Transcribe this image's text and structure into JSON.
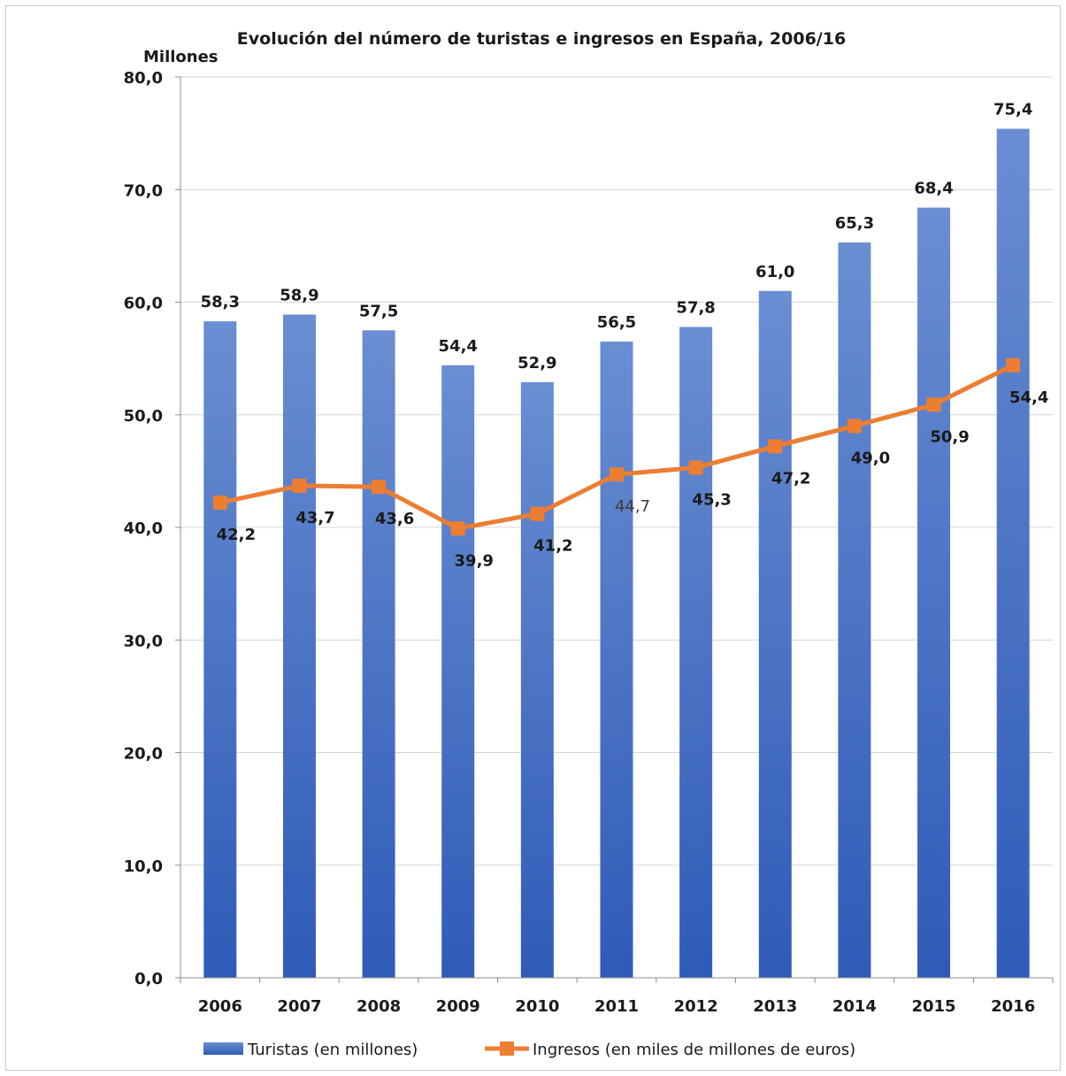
{
  "chart_data": {
    "type": "bar",
    "title": "Evolución del número de turistas e ingresos en España, 2006/16",
    "ylabel": "Millones",
    "xlabel": "",
    "ylim": [
      0,
      80
    ],
    "yticks": [
      "0,0",
      "10,0",
      "20,0",
      "30,0",
      "40,0",
      "50,0",
      "60,0",
      "70,0",
      "80,0"
    ],
    "grid": true,
    "legend": "bottom",
    "categories": [
      "2006",
      "2007",
      "2008",
      "2009",
      "2010",
      "2011",
      "2012",
      "2013",
      "2014",
      "2015",
      "2016"
    ],
    "series": [
      {
        "name": "Turistas (en millones)",
        "type": "bar",
        "color": "#4a72c4",
        "values": [
          58.3,
          58.9,
          57.5,
          54.4,
          52.9,
          56.5,
          57.8,
          61.0,
          65.3,
          68.4,
          75.4
        ],
        "labels": [
          "58,3",
          "58,9",
          "57,5",
          "54,4",
          "52,9",
          "56,5",
          "57,8",
          "61,0",
          "65,3",
          "68,4",
          "75,4"
        ]
      },
      {
        "name": "Ingresos (en miles de millones de euros)",
        "type": "line",
        "color": "#ed7d31",
        "values": [
          42.2,
          43.7,
          43.6,
          39.9,
          41.2,
          44.7,
          45.3,
          47.2,
          49.0,
          50.9,
          54.4
        ],
        "labels": [
          "42,2",
          "43,7",
          "43,6",
          "39,9",
          "41,2",
          "44,7",
          "45,3",
          "47,2",
          "49,0",
          "50,9",
          "54,4"
        ]
      }
    ]
  }
}
